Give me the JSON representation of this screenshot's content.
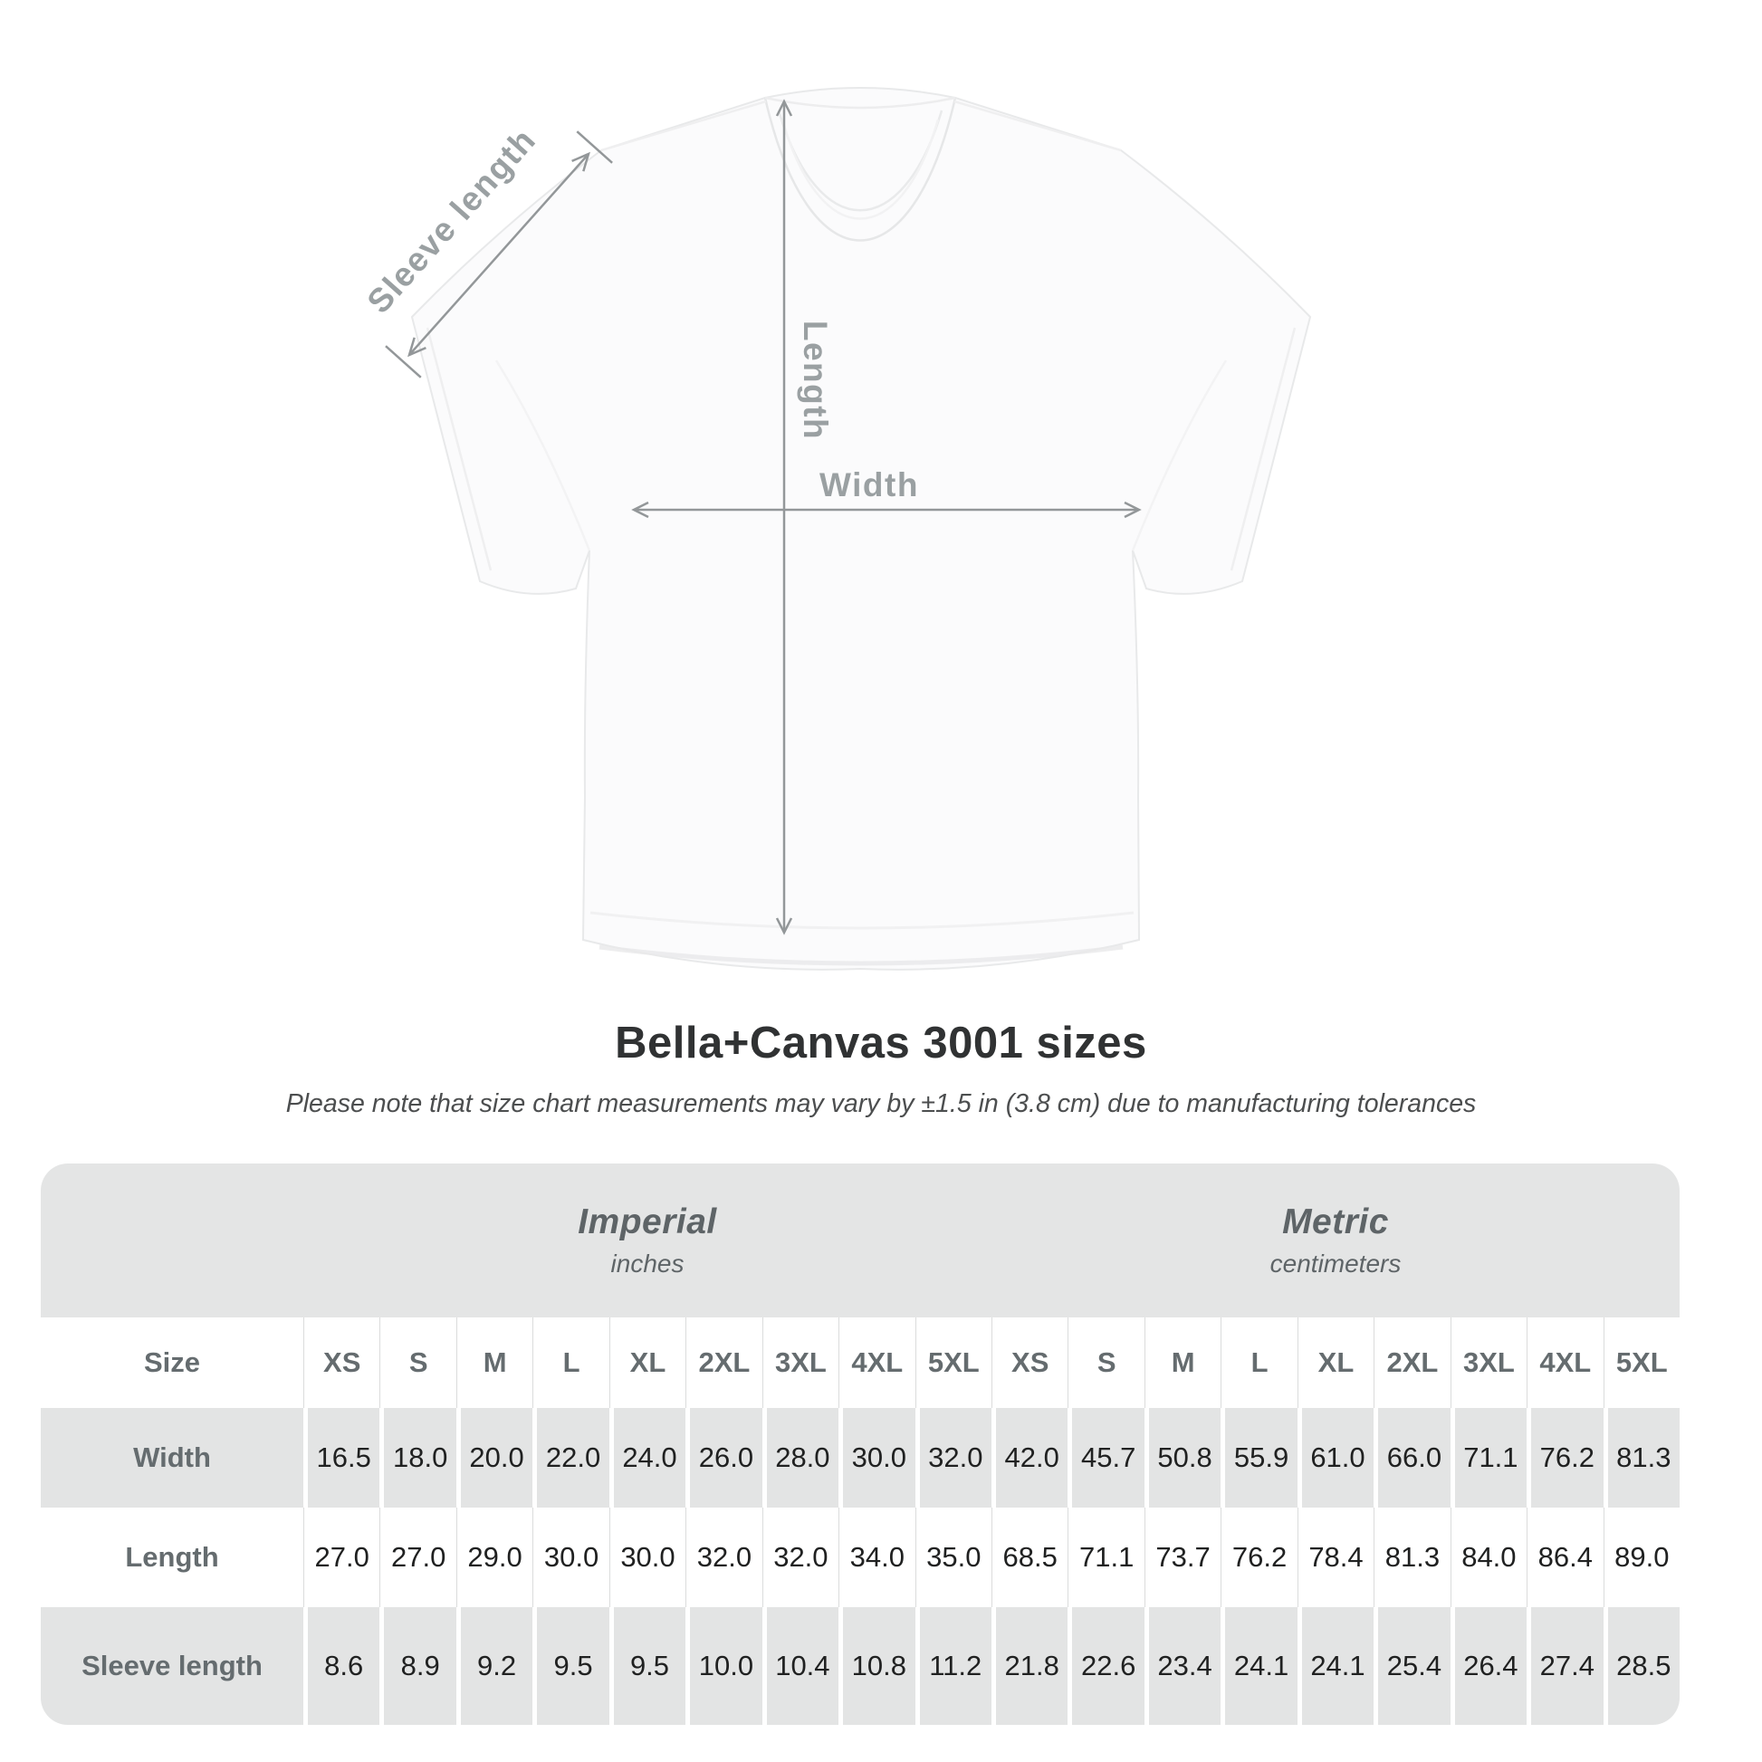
{
  "diagram": {
    "sleeve_length_label": "Sleeve length",
    "length_label": "Length",
    "width_label": "Width"
  },
  "heading": {
    "title": "Bella+Canvas 3001 sizes",
    "subtitle": "Please note that size chart measurements may vary by ±1.5 in (3.8 cm) due to manufacturing tolerances"
  },
  "size_chart": {
    "size_col_header": "Size",
    "groups": [
      {
        "name": "Imperial",
        "unit": "inches"
      },
      {
        "name": "Metric",
        "unit": "centimeters"
      }
    ],
    "sizes": [
      "XS",
      "S",
      "M",
      "L",
      "XL",
      "2XL",
      "3XL",
      "4XL",
      "5XL"
    ],
    "rows": [
      {
        "label": "Width",
        "imperial": [
          "16.5",
          "18.0",
          "20.0",
          "22.0",
          "24.0",
          "26.0",
          "28.0",
          "30.0",
          "32.0"
        ],
        "metric": [
          "42.0",
          "45.7",
          "50.8",
          "55.9",
          "61.0",
          "66.0",
          "71.1",
          "76.2",
          "81.3"
        ]
      },
      {
        "label": "Length",
        "imperial": [
          "27.0",
          "27.0",
          "29.0",
          "30.0",
          "30.0",
          "32.0",
          "32.0",
          "34.0",
          "35.0"
        ],
        "metric": [
          "68.5",
          "71.1",
          "73.7",
          "76.2",
          "78.4",
          "81.3",
          "84.0",
          "86.4",
          "89.0"
        ]
      },
      {
        "label": "Sleeve length",
        "imperial": [
          "8.6",
          "8.9",
          "9.2",
          "9.5",
          "9.5",
          "10.0",
          "10.4",
          "10.8",
          "11.2"
        ],
        "metric": [
          "21.8",
          "22.6",
          "23.4",
          "24.1",
          "24.1",
          "25.4",
          "26.4",
          "27.4",
          "28.5"
        ]
      }
    ]
  },
  "chart_data": {
    "type": "table",
    "title": "Bella+Canvas 3001 sizes",
    "note": "Please note that size chart measurements may vary by ±1.5 in (3.8 cm) due to manufacturing tolerances",
    "unit_groups": [
      {
        "name": "Imperial",
        "unit": "inches"
      },
      {
        "name": "Metric",
        "unit": "centimeters"
      }
    ],
    "columns": [
      "XS",
      "S",
      "M",
      "L",
      "XL",
      "2XL",
      "3XL",
      "4XL",
      "5XL"
    ],
    "rows": [
      {
        "measurement": "Width",
        "imperial_in": [
          16.5,
          18.0,
          20.0,
          22.0,
          24.0,
          26.0,
          28.0,
          30.0,
          32.0
        ],
        "metric_cm": [
          42.0,
          45.7,
          50.8,
          55.9,
          61.0,
          66.0,
          71.1,
          76.2,
          81.3
        ]
      },
      {
        "measurement": "Length",
        "imperial_in": [
          27.0,
          27.0,
          29.0,
          30.0,
          30.0,
          32.0,
          32.0,
          34.0,
          35.0
        ],
        "metric_cm": [
          68.5,
          71.1,
          73.7,
          76.2,
          78.4,
          81.3,
          84.0,
          86.4,
          89.0
        ]
      },
      {
        "measurement": "Sleeve length",
        "imperial_in": [
          8.6,
          8.9,
          9.2,
          9.5,
          9.5,
          10.0,
          10.4,
          10.8,
          11.2
        ],
        "metric_cm": [
          21.8,
          22.6,
          23.4,
          24.1,
          24.1,
          25.4,
          26.4,
          27.4,
          28.5
        ]
      }
    ]
  },
  "colors": {
    "card_gray": "#e4e5e5",
    "stripe_gray": "#e3e4e4",
    "header_text": "#656c6f",
    "value_text": "#202121",
    "diagram_gray": "#9aa0a2",
    "arrow_gray": "#939799"
  }
}
